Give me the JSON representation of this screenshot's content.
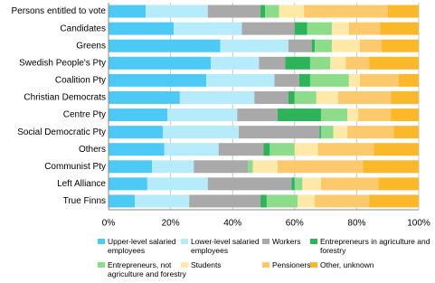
{
  "chart_data": {
    "type": "stacked-barh",
    "categories": [
      "Persons entitled to vote",
      "Candidates",
      "Greens",
      "Swedish People's Pty",
      "Coalition Pty",
      "Christian Democrats",
      "Centre Pty",
      "Social Democratic Pty",
      "Others",
      "Communist Pty",
      "Left Alliance",
      "True Finns"
    ],
    "series": [
      {
        "name": "Upper-level salaried employees",
        "color": "#4dc9f5",
        "values": [
          12,
          21,
          36,
          33,
          31.5,
          23,
          19,
          17.5,
          18,
          14,
          12.5,
          8.5
        ]
      },
      {
        "name": "Lower-level salaried employees",
        "color": "#b5ebfa",
        "values": [
          20,
          22,
          22,
          15.5,
          22,
          24,
          22.5,
          24.5,
          17.5,
          13.5,
          19.5,
          17.5
        ]
      },
      {
        "name": "Workers",
        "color": "#a9a9a9",
        "values": [
          17,
          17,
          7.5,
          8.5,
          8,
          11,
          13,
          26,
          14.5,
          17.5,
          27,
          23
        ]
      },
      {
        "name": "Entrepreneurs in agriculture and forestry",
        "color": "#2db45a",
        "values": [
          1.5,
          4,
          1,
          8,
          3.5,
          2,
          14,
          0.5,
          2,
          0,
          1,
          2
        ]
      },
      {
        "name": "Entrepreneurs, not agriculture and forestry",
        "color": "#8cdc8c",
        "values": [
          4.5,
          8,
          5.5,
          6.5,
          12.5,
          7,
          8.5,
          4,
          8,
          1.5,
          2.5,
          10
        ]
      },
      {
        "name": "Students",
        "color": "#ffe9a8",
        "values": [
          8,
          5.5,
          9,
          5,
          3.5,
          7,
          3.5,
          4.5,
          7.5,
          8,
          6,
          5.5
        ]
      },
      {
        "name": "Pensioners",
        "color": "#fcc96c",
        "values": [
          27,
          10,
          7,
          7.5,
          12.5,
          17,
          10.5,
          15,
          18,
          27.5,
          18.5,
          17.5
        ]
      },
      {
        "name": "Other, unknown",
        "color": "#fbb82a",
        "values": [
          10,
          12.5,
          12,
          16,
          6.5,
          9,
          9,
          8,
          14.5,
          18,
          13,
          16
        ]
      }
    ],
    "xlim": [
      0,
      100
    ],
    "xticks": [
      {
        "value": 0,
        "label": "0%"
      },
      {
        "value": 20,
        "label": "20%"
      },
      {
        "value": 40,
        "label": "40%"
      },
      {
        "value": 60,
        "label": "60%"
      },
      {
        "value": 80,
        "label": "80%"
      },
      {
        "value": 100,
        "label": "100%"
      }
    ],
    "grid": true
  }
}
